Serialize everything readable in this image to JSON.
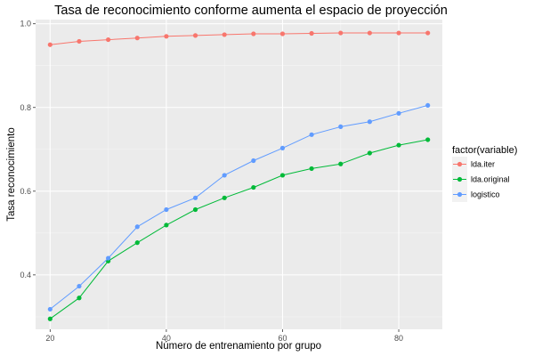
{
  "chart_data": {
    "type": "line",
    "title": "Tasa de reconocimiento conforme aumenta el espacio de proyección",
    "xlabel": "Número de entrenamiento por grupo",
    "ylabel": "Tasa reconocimiento",
    "xlim": [
      17.5,
      87.5
    ],
    "ylim": [
      0.27,
      1.01
    ],
    "x_ticks": [
      20,
      40,
      60,
      80
    ],
    "x_minor_ticks": [
      30,
      50,
      70
    ],
    "y_ticks": [
      0.4,
      0.6,
      0.8,
      1.0
    ],
    "y_tick_labels": [
      "0.4",
      "0.6",
      "0.8",
      "1.0"
    ],
    "y_minor_ticks": [
      0.3,
      0.5,
      0.7,
      0.9
    ],
    "grid": true,
    "legend_title": "factor(variable)",
    "legend_position": "right",
    "x": [
      20,
      25,
      30,
      35,
      40,
      45,
      50,
      55,
      60,
      65,
      70,
      75,
      80,
      85
    ],
    "series": [
      {
        "name": "lda.iter",
        "color": "#F8766D",
        "values": [
          0.95,
          0.958,
          0.962,
          0.966,
          0.97,
          0.972,
          0.974,
          0.976,
          0.976,
          0.977,
          0.978,
          0.978,
          0.978,
          0.978
        ]
      },
      {
        "name": "lda.original",
        "color": "#00BA38",
        "values": [
          0.295,
          0.345,
          0.433,
          0.477,
          0.519,
          0.556,
          0.584,
          0.609,
          0.638,
          0.654,
          0.665,
          0.691,
          0.71,
          0.723
        ]
      },
      {
        "name": "logistico",
        "color": "#619CFF",
        "values": [
          0.318,
          0.373,
          0.44,
          0.515,
          0.556,
          0.584,
          0.638,
          0.673,
          0.703,
          0.735,
          0.754,
          0.766,
          0.786,
          0.805
        ]
      }
    ]
  }
}
